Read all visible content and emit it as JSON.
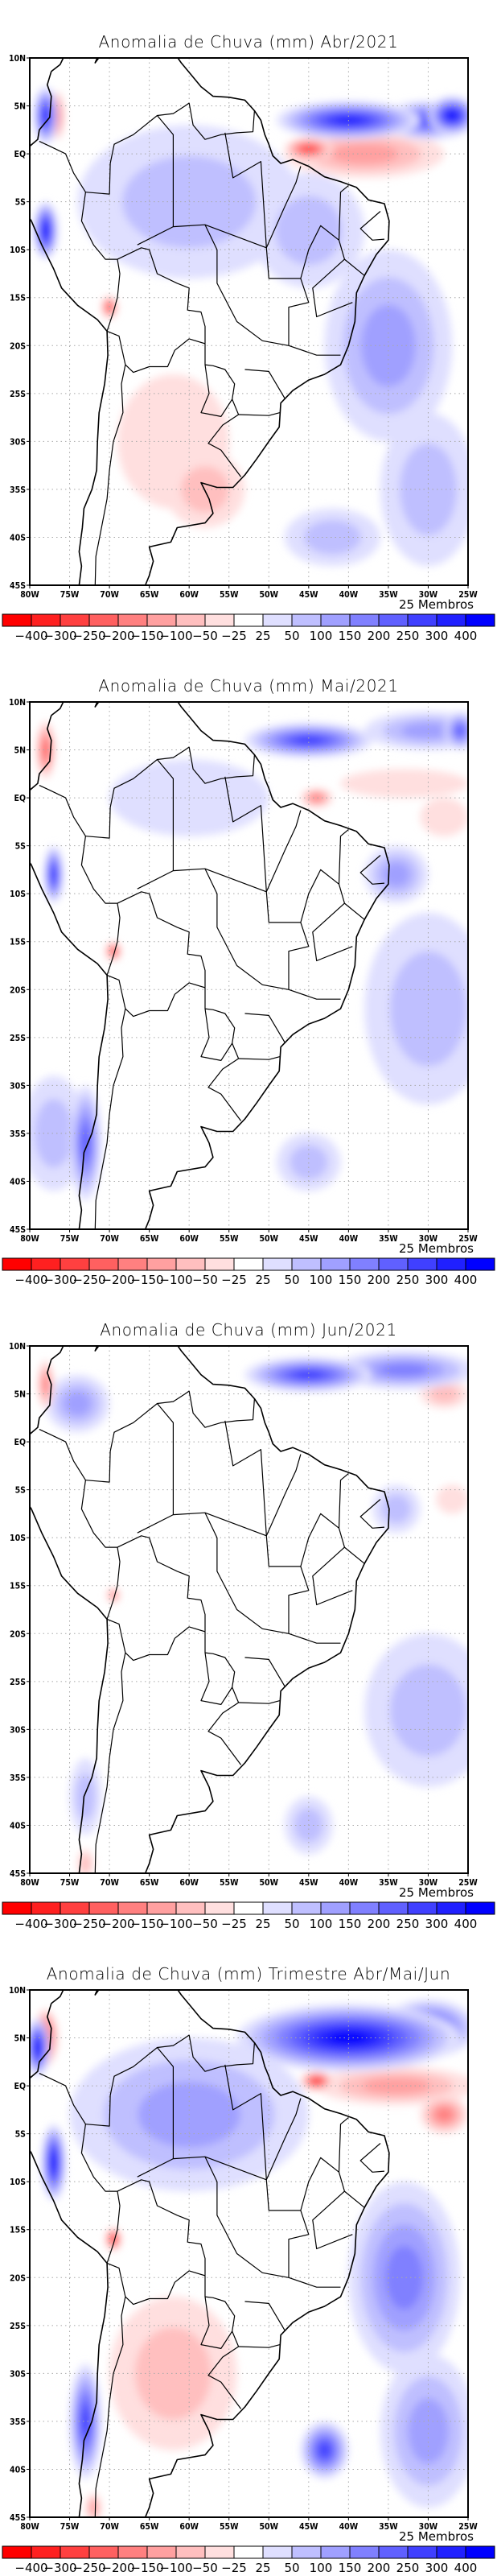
{
  "colorbar": {
    "labels": [
      "−400",
      "−300",
      "−250",
      "−200",
      "−150",
      "−100",
      "−50",
      "−25",
      "25",
      "50",
      "100",
      "150",
      "200",
      "250",
      "300",
      "400"
    ],
    "colors": [
      "#ff0000",
      "#ff2020",
      "#ff4040",
      "#ff6060",
      "#ff8080",
      "#ffa0a0",
      "#ffbfbf",
      "#ffdfdf",
      "#ffffff",
      "#dfdfff",
      "#bfbfff",
      "#a0a0ff",
      "#8080ff",
      "#6060ff",
      "#4040ff",
      "#2020ff",
      "#0000ff"
    ],
    "members_label": "25 Membros"
  },
  "axes": {
    "lon_ticks": [
      "80W",
      "75W",
      "70W",
      "65W",
      "60W",
      "55W",
      "50W",
      "45W",
      "40W",
      "35W",
      "30W",
      "25W"
    ],
    "lat_ticks": [
      "10N",
      "5N",
      "EQ",
      "5S",
      "10S",
      "15S",
      "20S",
      "25S",
      "30S",
      "35S",
      "40S",
      "45S"
    ],
    "lon_range": [
      -80,
      -25
    ],
    "lat_range": [
      -45,
      10
    ]
  },
  "chart_data": [
    {
      "type": "heatmap",
      "title": "Anomalia de Chuva (mm) Abr/2021",
      "units": "mm",
      "xlim": [
        -80,
        -25
      ],
      "ylim": [
        -45,
        10
      ],
      "features": [
        {
          "lon": -40,
          "lat": 3.5,
          "rx": 9,
          "ry": 2,
          "value": 300
        },
        {
          "lon": -30,
          "lat": 3.5,
          "rx": 6,
          "ry": 2,
          "value": 250
        },
        {
          "lon": -27,
          "lat": 4,
          "rx": 3,
          "ry": 2,
          "value": 400
        },
        {
          "lon": -38,
          "lat": 0,
          "rx": 10,
          "ry": 2.5,
          "value": -150
        },
        {
          "lon": -45,
          "lat": 0.5,
          "rx": 3,
          "ry": 1.2,
          "value": -300
        },
        {
          "lon": -60,
          "lat": -5,
          "rx": 14,
          "ry": 8,
          "value": 50
        },
        {
          "lon": -45,
          "lat": -8,
          "rx": 7,
          "ry": 6,
          "value": 50
        },
        {
          "lon": -35,
          "lat": -20,
          "rx": 8,
          "ry": 10,
          "value": 100
        },
        {
          "lon": -30,
          "lat": -35,
          "rx": 6,
          "ry": 8,
          "value": 50
        },
        {
          "lon": -62,
          "lat": -30,
          "rx": 7,
          "ry": 7,
          "value": -50
        },
        {
          "lon": -58,
          "lat": -35,
          "rx": 5,
          "ry": 4,
          "value": -100
        },
        {
          "lon": -78,
          "lat": 4,
          "rx": 1.5,
          "ry": 3,
          "value": 300
        },
        {
          "lon": -76.5,
          "lat": 4,
          "rx": 0.8,
          "ry": 2.5,
          "value": -250
        },
        {
          "lon": -78,
          "lat": -8,
          "rx": 1.5,
          "ry": 3,
          "value": 400
        },
        {
          "lon": -70,
          "lat": -16,
          "rx": 1,
          "ry": 1.2,
          "value": -300
        },
        {
          "lon": -42,
          "lat": -40,
          "rx": 6,
          "ry": 3,
          "value": 50
        }
      ]
    },
    {
      "type": "heatmap",
      "title": "Anomalia de Chuva (mm) Mai/2021",
      "units": "mm",
      "xlim": [
        -80,
        -25
      ],
      "ylim": [
        -45,
        10
      ],
      "features": [
        {
          "lon": -45,
          "lat": 6,
          "rx": 8,
          "ry": 1.8,
          "value": 250
        },
        {
          "lon": -30,
          "lat": 7,
          "rx": 8,
          "ry": 2,
          "value": 100
        },
        {
          "lon": -26,
          "lat": 7,
          "rx": 2,
          "ry": 2,
          "value": 200
        },
        {
          "lon": -33,
          "lat": 1.5,
          "rx": 8,
          "ry": 1.5,
          "value": -50
        },
        {
          "lon": -28,
          "lat": -2,
          "rx": 3,
          "ry": 2,
          "value": -50
        },
        {
          "lon": -44,
          "lat": 0,
          "rx": 2,
          "ry": 1,
          "value": -200
        },
        {
          "lon": -34,
          "lat": -8,
          "rx": 4,
          "ry": 3,
          "value": 100
        },
        {
          "lon": -30,
          "lat": -22,
          "rx": 8,
          "ry": 10,
          "value": 50
        },
        {
          "lon": -73,
          "lat": -36,
          "rx": 2,
          "ry": 6,
          "value": 200
        },
        {
          "lon": -77,
          "lat": -35,
          "rx": 4,
          "ry": 6,
          "value": 50
        },
        {
          "lon": -45,
          "lat": -38,
          "rx": 4,
          "ry": 3,
          "value": 50
        },
        {
          "lon": -78,
          "lat": 5,
          "rx": 1.2,
          "ry": 3,
          "value": -250
        },
        {
          "lon": -77,
          "lat": -8,
          "rx": 1.2,
          "ry": 3,
          "value": 300
        },
        {
          "lon": -69.5,
          "lat": -16,
          "rx": 1,
          "ry": 1,
          "value": -300
        },
        {
          "lon": -60,
          "lat": 0,
          "rx": 10,
          "ry": 4,
          "value": 25
        }
      ]
    },
    {
      "type": "heatmap",
      "title": "Anomalia de Chuva (mm) Jun/2021",
      "units": "mm",
      "xlim": [
        -80,
        -25
      ],
      "ylim": [
        -45,
        10
      ],
      "features": [
        {
          "lon": -45,
          "lat": 7,
          "rx": 8,
          "ry": 1.8,
          "value": 250
        },
        {
          "lon": -33,
          "lat": 7.5,
          "rx": 9,
          "ry": 2,
          "value": 150
        },
        {
          "lon": -28,
          "lat": 5,
          "rx": 3,
          "ry": 1.5,
          "value": -100
        },
        {
          "lon": -34,
          "lat": -7,
          "rx": 3,
          "ry": 2.5,
          "value": 50
        },
        {
          "lon": -30,
          "lat": -28,
          "rx": 8,
          "ry": 8,
          "value": 50
        },
        {
          "lon": -27,
          "lat": -6,
          "rx": 2,
          "ry": 1.5,
          "value": -50
        },
        {
          "lon": -78,
          "lat": 6,
          "rx": 1,
          "ry": 2.5,
          "value": -200
        },
        {
          "lon": -74,
          "lat": 4,
          "rx": 4,
          "ry": 3,
          "value": 100
        },
        {
          "lon": -69.5,
          "lat": -16,
          "rx": 0.8,
          "ry": 0.8,
          "value": -200
        },
        {
          "lon": -73,
          "lat": -37,
          "rx": 2,
          "ry": 4,
          "value": 50
        },
        {
          "lon": -45,
          "lat": -40,
          "rx": 3,
          "ry": 3,
          "value": 50
        },
        {
          "lon": -73,
          "lat": -44,
          "rx": 1,
          "ry": 1.5,
          "value": -100
        }
      ]
    },
    {
      "type": "heatmap",
      "title": "Anomalia de Chuva (mm) Trimestre Abr/Mai/Jun",
      "units": "mm",
      "xlim": [
        -80,
        -25
      ],
      "ylim": [
        -45,
        10
      ],
      "features": [
        {
          "lon": -40,
          "lat": 5,
          "rx": 14,
          "ry": 3.5,
          "value": 400
        },
        {
          "lon": -30,
          "lat": 6,
          "rx": 6,
          "ry": 3,
          "value": 250
        },
        {
          "lon": -34,
          "lat": 0,
          "rx": 10,
          "ry": 2,
          "value": -150
        },
        {
          "lon": -28,
          "lat": -3,
          "rx": 3,
          "ry": 2,
          "value": -200
        },
        {
          "lon": -44,
          "lat": 0.5,
          "rx": 2,
          "ry": 1,
          "value": -400
        },
        {
          "lon": -60,
          "lat": -3,
          "rx": 15,
          "ry": 8,
          "value": 100
        },
        {
          "lon": -33,
          "lat": -20,
          "rx": 7,
          "ry": 10,
          "value": 150
        },
        {
          "lon": -30,
          "lat": -36,
          "rx": 6,
          "ry": 8,
          "value": 100
        },
        {
          "lon": -43,
          "lat": -38,
          "rx": 3,
          "ry": 3,
          "value": 250
        },
        {
          "lon": -62,
          "lat": -30,
          "rx": 8,
          "ry": 8,
          "value": -100
        },
        {
          "lon": -73,
          "lat": -35,
          "rx": 2,
          "ry": 6,
          "value": 250
        },
        {
          "lon": -78,
          "lat": 5,
          "rx": 1.5,
          "ry": 3,
          "value": -400
        },
        {
          "lon": -79,
          "lat": 4,
          "rx": 1.5,
          "ry": 3,
          "value": 400
        },
        {
          "lon": -77,
          "lat": -8,
          "rx": 1.5,
          "ry": 4,
          "value": 400
        },
        {
          "lon": -69.5,
          "lat": -16,
          "rx": 1,
          "ry": 1.2,
          "value": -400
        },
        {
          "lon": -72,
          "lat": -44,
          "rx": 1,
          "ry": 1.5,
          "value": -150
        }
      ]
    }
  ]
}
